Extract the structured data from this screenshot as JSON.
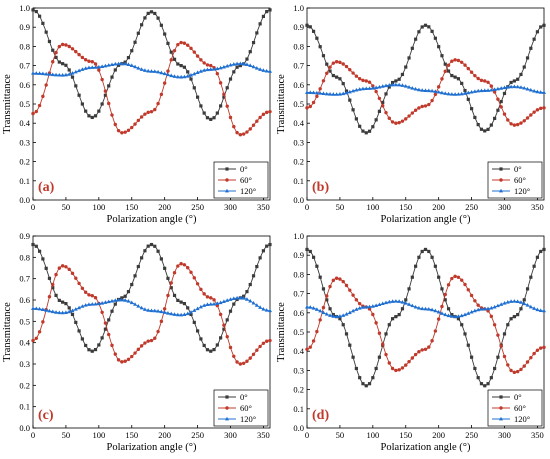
{
  "colors": {
    "series": [
      "#3b3b3b",
      "#c0392b",
      "#1f6fd1"
    ],
    "axis": "#000000",
    "panel_label": "#c0392b"
  },
  "chart_data": [
    {
      "type": "line",
      "panel_label": "(a)",
      "xlabel": "Polarization angle (°)",
      "ylabel": "Transmittance",
      "xlim": [
        0,
        360
      ],
      "ylim": [
        0,
        1.0
      ],
      "xticks": [
        "0",
        "50",
        "100",
        "150",
        "200",
        "250",
        "300",
        "350"
      ],
      "yticks": [
        "0.0",
        "0.1",
        "0.2",
        "0.3",
        "0.4",
        "0.5",
        "0.6",
        "0.7",
        "0.8",
        "0.9",
        "1.0"
      ],
      "legend_position": "bottom-right",
      "x": [
        0,
        45,
        90,
        135,
        180,
        225,
        270,
        315,
        360
      ],
      "series": [
        {
          "name": "0°",
          "marker": "square",
          "values": [
            0.99,
            0.71,
            0.43,
            0.71,
            0.98,
            0.7,
            0.42,
            0.7,
            0.99
          ]
        },
        {
          "name": "60°",
          "marker": "circle",
          "values": [
            0.45,
            0.81,
            0.72,
            0.35,
            0.46,
            0.82,
            0.7,
            0.34,
            0.46
          ]
        },
        {
          "name": "120°",
          "marker": "triangle",
          "values": [
            0.66,
            0.65,
            0.69,
            0.71,
            0.67,
            0.64,
            0.68,
            0.71,
            0.67
          ]
        }
      ]
    },
    {
      "type": "line",
      "panel_label": "(b)",
      "xlabel": "Polarization angle (°)",
      "ylabel": "Transmittance",
      "xlim": [
        0,
        360
      ],
      "ylim": [
        0,
        1.0
      ],
      "xticks": [
        "0",
        "50",
        "100",
        "150",
        "200",
        "250",
        "300",
        "350"
      ],
      "yticks": [
        "0.0",
        "0.1",
        "0.2",
        "0.3",
        "0.4",
        "0.5",
        "0.6",
        "0.7",
        "0.8",
        "0.9",
        "1.0"
      ],
      "legend_position": "bottom-right",
      "x": [
        0,
        45,
        90,
        135,
        180,
        225,
        270,
        315,
        360
      ],
      "series": [
        {
          "name": "0°",
          "marker": "square",
          "values": [
            0.91,
            0.64,
            0.35,
            0.62,
            0.91,
            0.64,
            0.36,
            0.62,
            0.91
          ]
        },
        {
          "name": "60°",
          "marker": "circle",
          "values": [
            0.48,
            0.72,
            0.62,
            0.4,
            0.49,
            0.73,
            0.62,
            0.39,
            0.48
          ]
        },
        {
          "name": "120°",
          "marker": "triangle",
          "values": [
            0.56,
            0.55,
            0.58,
            0.6,
            0.57,
            0.55,
            0.57,
            0.59,
            0.56
          ]
        }
      ]
    },
    {
      "type": "line",
      "panel_label": "(c)",
      "xlabel": "Polarization angle (°)",
      "ylabel": "Transmittance",
      "xlim": [
        0,
        360
      ],
      "ylim": [
        0,
        0.9
      ],
      "xticks": [
        "0",
        "50",
        "100",
        "150",
        "200",
        "250",
        "300",
        "350"
      ],
      "yticks": [
        "0.0",
        "0.1",
        "0.2",
        "0.3",
        "0.4",
        "0.5",
        "0.6",
        "0.7",
        "0.8",
        "0.9"
      ],
      "legend_position": "bottom-right",
      "x": [
        0,
        45,
        90,
        135,
        180,
        225,
        270,
        315,
        360
      ],
      "series": [
        {
          "name": "0°",
          "marker": "square",
          "values": [
            0.86,
            0.59,
            0.36,
            0.61,
            0.86,
            0.59,
            0.36,
            0.61,
            0.86
          ]
        },
        {
          "name": "60°",
          "marker": "circle",
          "values": [
            0.41,
            0.76,
            0.62,
            0.31,
            0.41,
            0.77,
            0.61,
            0.3,
            0.41
          ]
        },
        {
          "name": "120°",
          "marker": "triangle",
          "values": [
            0.56,
            0.54,
            0.58,
            0.6,
            0.55,
            0.53,
            0.58,
            0.61,
            0.55
          ]
        }
      ]
    },
    {
      "type": "line",
      "panel_label": "(d)",
      "xlabel": "Polarization angle (°)",
      "ylabel": "Transmittance",
      "xlim": [
        0,
        360
      ],
      "ylim": [
        0,
        1.0
      ],
      "xticks": [
        "0",
        "50",
        "100",
        "150",
        "200",
        "250",
        "300",
        "350"
      ],
      "yticks": [
        "0.0",
        "0.1",
        "0.2",
        "0.3",
        "0.4",
        "0.5",
        "0.6",
        "0.7",
        "0.8",
        "0.9",
        "1.0"
      ],
      "legend_position": "bottom-right",
      "x": [
        0,
        45,
        90,
        135,
        180,
        225,
        270,
        315,
        360
      ],
      "series": [
        {
          "name": "0°",
          "marker": "square",
          "values": [
            0.93,
            0.58,
            0.22,
            0.58,
            0.93,
            0.58,
            0.22,
            0.58,
            0.93
          ]
        },
        {
          "name": "60°",
          "marker": "circle",
          "values": [
            0.41,
            0.78,
            0.63,
            0.3,
            0.41,
            0.79,
            0.62,
            0.29,
            0.42
          ]
        },
        {
          "name": "120°",
          "marker": "triangle",
          "values": [
            0.63,
            0.58,
            0.63,
            0.66,
            0.62,
            0.58,
            0.62,
            0.66,
            0.61
          ]
        }
      ]
    }
  ]
}
